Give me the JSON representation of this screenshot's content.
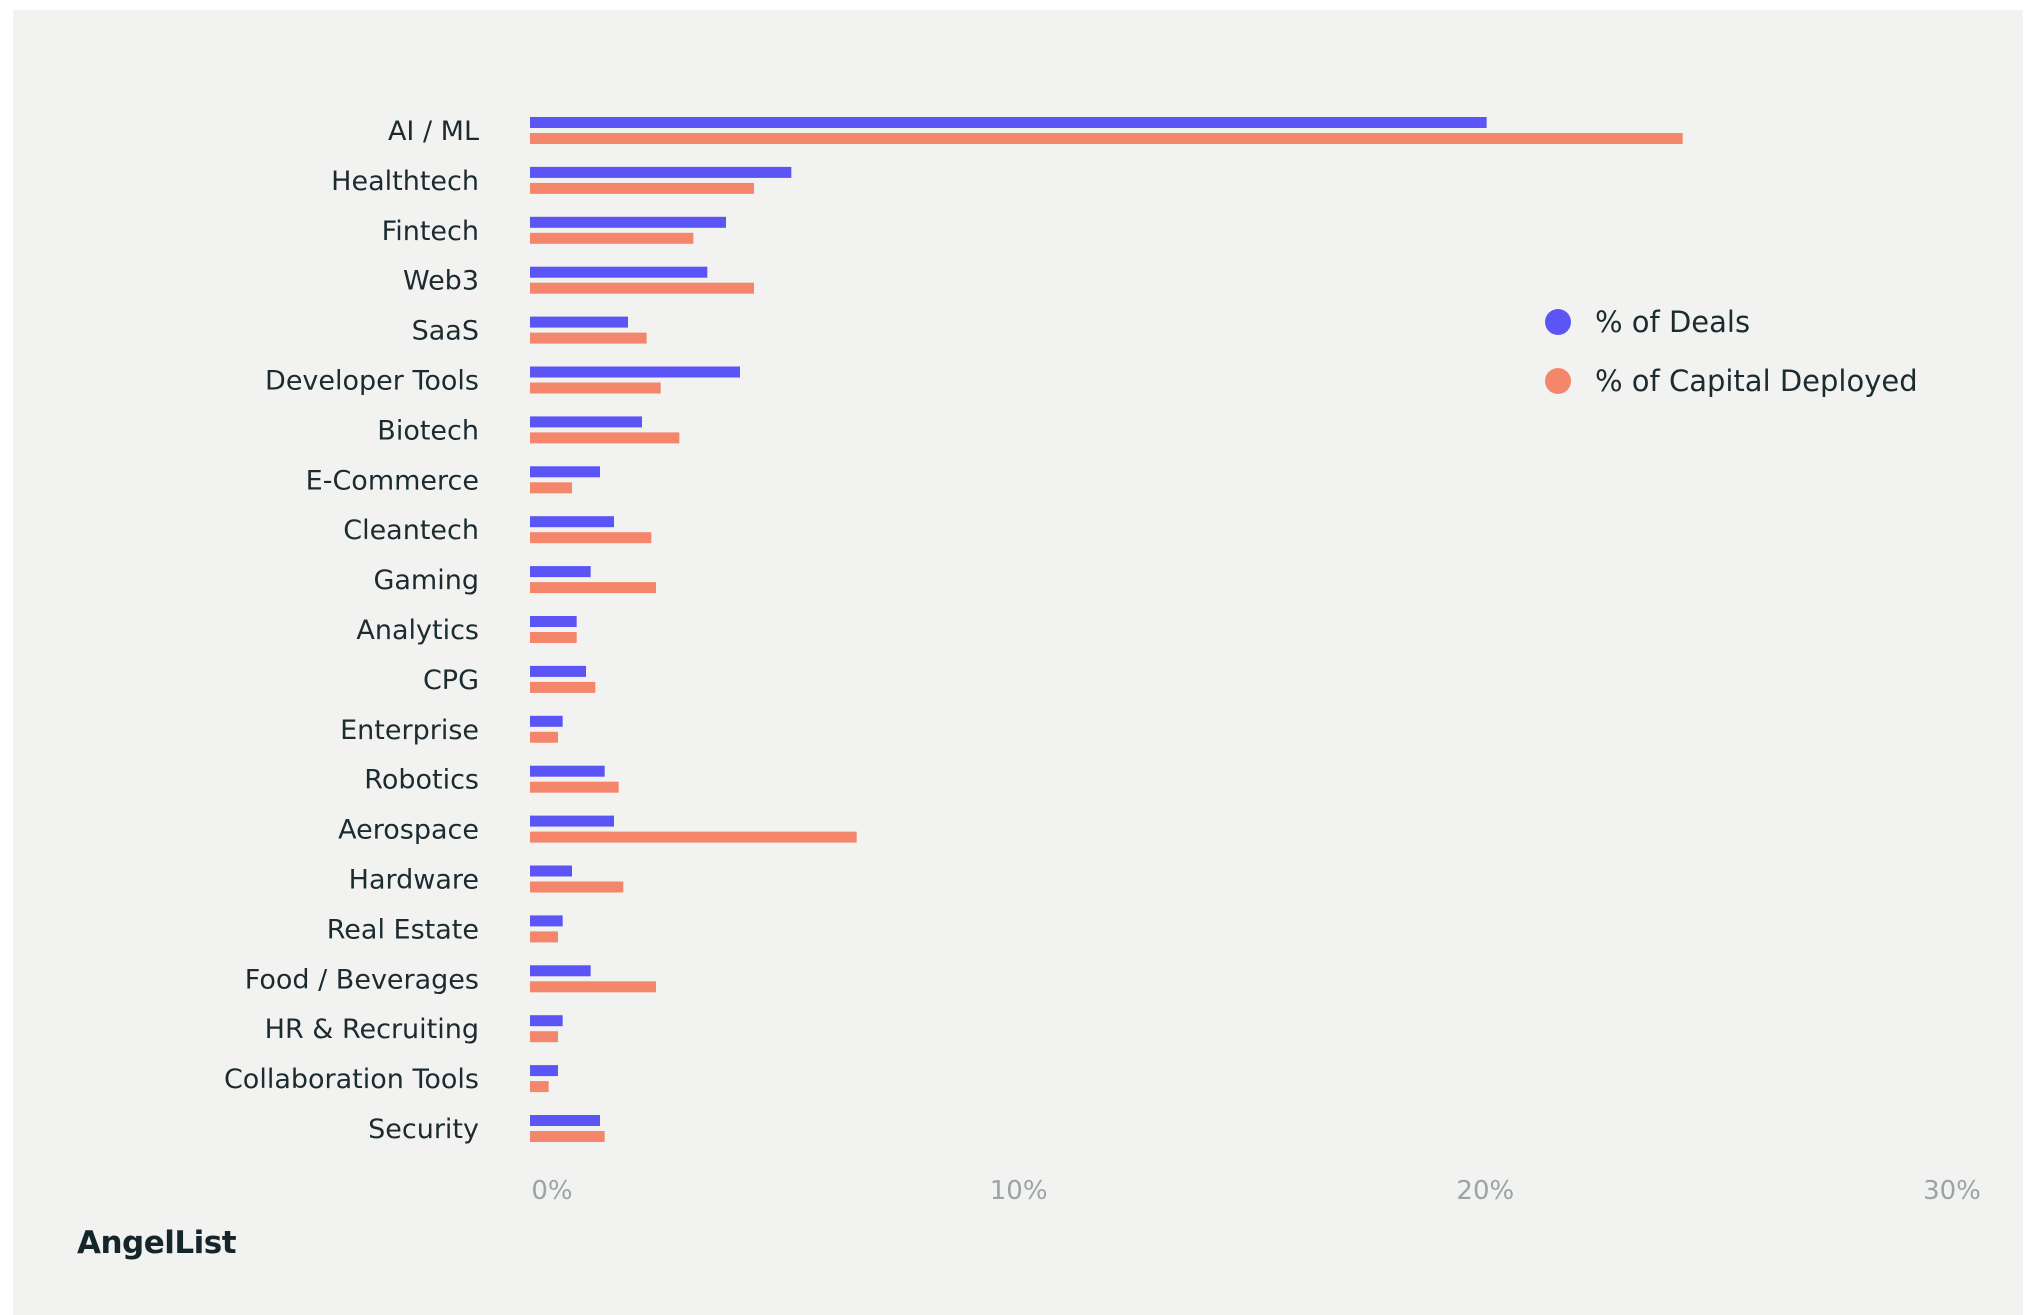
{
  "brand": {
    "logo_text": "AngelList"
  },
  "colors": {
    "deals": "#5b55f5",
    "capital": "#f4876b",
    "background": "#f2f3f1"
  },
  "chart_data": {
    "type": "bar",
    "orientation": "horizontal",
    "title": "",
    "xlabel": "",
    "ylabel": "",
    "xlim": [
      0,
      30
    ],
    "x_ticks": [
      "0%",
      "10%",
      "20%",
      "30%"
    ],
    "x_tick_values": [
      0,
      10,
      20,
      30
    ],
    "grid": false,
    "legend_position": "right",
    "categories": [
      "AI / ML",
      "Healthtech",
      "Fintech",
      "Web3",
      "SaaS",
      "Developer Tools",
      "Biotech",
      "E-Commerce",
      "Cleantech",
      "Gaming",
      "Analytics",
      "CPG",
      "Enterprise",
      "Robotics",
      "Aerospace",
      "Hardware",
      "Real Estate",
      "Food / Beverages",
      "HR & Recruiting",
      "Collaboration Tools",
      "Security"
    ],
    "series": [
      {
        "name": "% of Deals",
        "color": "#5b55f5",
        "values": [
          20.5,
          5.6,
          4.2,
          3.8,
          2.1,
          4.5,
          2.4,
          1.5,
          1.8,
          1.3,
          1.0,
          1.2,
          0.7,
          1.6,
          1.8,
          0.9,
          0.7,
          1.3,
          0.7,
          0.6,
          1.5
        ]
      },
      {
        "name": "% of Capital Deployed",
        "color": "#f4876b",
        "values": [
          24.7,
          4.8,
          3.5,
          4.8,
          2.5,
          2.8,
          3.2,
          0.9,
          2.6,
          2.7,
          1.0,
          1.4,
          0.6,
          1.9,
          7.0,
          2.0,
          0.6,
          2.7,
          0.6,
          0.4,
          1.6
        ]
      }
    ]
  }
}
